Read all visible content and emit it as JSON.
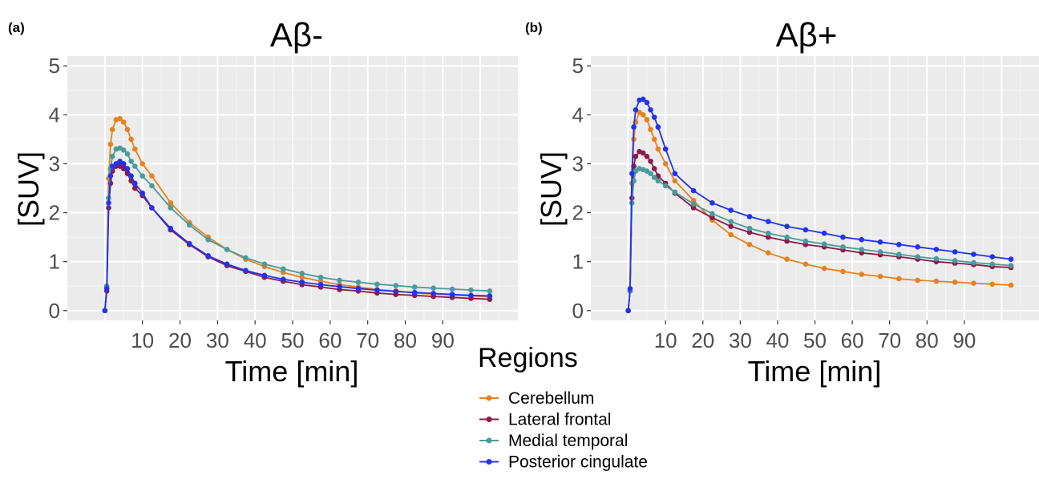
{
  "chart_data": [
    {
      "panel_label": "(a)",
      "type": "line",
      "title": "Aβ-",
      "xlabel": "Time [min]",
      "ylabel": "[SUV]",
      "xlim": [
        -10,
        110
      ],
      "ylim": [
        -0.2,
        5.2
      ],
      "xticks": [
        10,
        20,
        30,
        40,
        50,
        60,
        70,
        80,
        90
      ],
      "yticks": [
        0,
        1,
        2,
        3,
        4,
        5
      ],
      "grid": true,
      "series": [
        {
          "name": "Cerebellum",
          "color": "#e6821e",
          "x": [
            0,
            0.5,
            1,
            1.5,
            2,
            3,
            4,
            5,
            6,
            7,
            8,
            10,
            12.5,
            17.5,
            22.5,
            27.5,
            32.5,
            37.5,
            42.5,
            47.5,
            52.5,
            57.5,
            62.5,
            67.5,
            72.5,
            77.5,
            82.5,
            87.5,
            92.5,
            97.5,
            102.5
          ],
          "y": [
            0,
            0.5,
            2.7,
            3.4,
            3.7,
            3.9,
            3.92,
            3.85,
            3.7,
            3.5,
            3.3,
            3.0,
            2.75,
            2.2,
            1.8,
            1.5,
            1.25,
            1.05,
            0.9,
            0.78,
            0.68,
            0.6,
            0.53,
            0.48,
            0.43,
            0.4,
            0.36,
            0.34,
            0.32,
            0.3,
            0.28
          ]
        },
        {
          "name": "Lateral frontal",
          "color": "#8c1a4a",
          "x": [
            0,
            0.5,
            1,
            1.5,
            2,
            3,
            4,
            5,
            6,
            7,
            8,
            10,
            12.5,
            17.5,
            22.5,
            27.5,
            32.5,
            37.5,
            42.5,
            47.5,
            52.5,
            57.5,
            62.5,
            67.5,
            72.5,
            77.5,
            82.5,
            87.5,
            92.5,
            97.5,
            102.5
          ],
          "y": [
            0,
            0.4,
            2.1,
            2.6,
            2.85,
            2.95,
            2.95,
            2.9,
            2.8,
            2.65,
            2.5,
            2.35,
            2.1,
            1.65,
            1.35,
            1.1,
            0.92,
            0.8,
            0.68,
            0.6,
            0.53,
            0.48,
            0.43,
            0.4,
            0.36,
            0.33,
            0.31,
            0.29,
            0.27,
            0.25,
            0.23
          ]
        },
        {
          "name": "Medial temporal",
          "color": "#4a9b9b",
          "x": [
            0,
            0.5,
            1,
            1.5,
            2,
            3,
            4,
            5,
            6,
            7,
            8,
            10,
            12.5,
            17.5,
            22.5,
            27.5,
            32.5,
            37.5,
            42.5,
            47.5,
            52.5,
            57.5,
            62.5,
            67.5,
            72.5,
            77.5,
            82.5,
            87.5,
            92.5,
            97.5,
            102.5
          ],
          "y": [
            0,
            0.5,
            2.3,
            2.9,
            3.15,
            3.3,
            3.32,
            3.28,
            3.2,
            3.05,
            2.95,
            2.75,
            2.55,
            2.1,
            1.75,
            1.45,
            1.25,
            1.08,
            0.95,
            0.85,
            0.76,
            0.68,
            0.62,
            0.58,
            0.54,
            0.51,
            0.48,
            0.46,
            0.44,
            0.42,
            0.4
          ]
        },
        {
          "name": "Posterior cingulate",
          "color": "#2233ee",
          "x": [
            0,
            0.5,
            1,
            1.5,
            2,
            3,
            4,
            5,
            6,
            7,
            8,
            10,
            12.5,
            17.5,
            22.5,
            27.5,
            32.5,
            37.5,
            42.5,
            47.5,
            52.5,
            57.5,
            62.5,
            67.5,
            72.5,
            77.5,
            82.5,
            87.5,
            92.5,
            97.5,
            102.5
          ],
          "y": [
            0,
            0.45,
            2.2,
            2.75,
            2.95,
            3.0,
            3.05,
            3.0,
            2.9,
            2.75,
            2.6,
            2.4,
            2.1,
            1.68,
            1.37,
            1.12,
            0.95,
            0.82,
            0.72,
            0.64,
            0.58,
            0.53,
            0.49,
            0.45,
            0.42,
            0.39,
            0.37,
            0.35,
            0.33,
            0.31,
            0.3
          ]
        }
      ]
    },
    {
      "panel_label": "(b)",
      "type": "line",
      "title": "Aβ+",
      "xlabel": "Time [min]",
      "ylabel": "[SUV]",
      "xlim": [
        -10,
        110
      ],
      "ylim": [
        -0.2,
        5.2
      ],
      "xticks": [
        10,
        20,
        30,
        40,
        50,
        60,
        70,
        80,
        90
      ],
      "yticks": [
        0,
        1,
        2,
        3,
        4,
        5
      ],
      "grid": true,
      "series": [
        {
          "name": "Cerebellum",
          "color": "#e6821e",
          "x": [
            0,
            0.5,
            1,
            1.5,
            2,
            3,
            4,
            5,
            6,
            7,
            8,
            10,
            12.5,
            17.5,
            22.5,
            27.5,
            32.5,
            37.5,
            42.5,
            47.5,
            52.5,
            57.5,
            62.5,
            67.5,
            72.5,
            77.5,
            82.5,
            87.5,
            92.5,
            97.5,
            102.5
          ],
          "y": [
            0,
            0.4,
            2.6,
            3.5,
            3.85,
            4.05,
            4.0,
            3.9,
            3.7,
            3.5,
            3.3,
            3.0,
            2.65,
            2.25,
            1.85,
            1.55,
            1.35,
            1.18,
            1.05,
            0.95,
            0.86,
            0.8,
            0.74,
            0.7,
            0.65,
            0.62,
            0.6,
            0.58,
            0.56,
            0.54,
            0.52
          ]
        },
        {
          "name": "Lateral frontal",
          "color": "#8c1a4a",
          "x": [
            0,
            0.5,
            1,
            1.5,
            2,
            3,
            4,
            5,
            6,
            7,
            8,
            10,
            12.5,
            17.5,
            22.5,
            27.5,
            32.5,
            37.5,
            42.5,
            47.5,
            52.5,
            57.5,
            62.5,
            67.5,
            72.5,
            77.5,
            82.5,
            87.5,
            92.5,
            97.5,
            102.5
          ],
          "y": [
            0,
            0.4,
            2.3,
            2.95,
            3.15,
            3.25,
            3.22,
            3.15,
            3.05,
            2.9,
            2.75,
            2.6,
            2.4,
            2.1,
            1.9,
            1.72,
            1.6,
            1.5,
            1.42,
            1.35,
            1.3,
            1.24,
            1.18,
            1.14,
            1.1,
            1.05,
            1.0,
            0.97,
            0.94,
            0.9,
            0.88
          ]
        },
        {
          "name": "Medial temporal",
          "color": "#4a9b9b",
          "x": [
            0,
            0.5,
            1,
            1.5,
            2,
            3,
            4,
            5,
            6,
            7,
            8,
            10,
            12.5,
            17.5,
            22.5,
            27.5,
            32.5,
            37.5,
            42.5,
            47.5,
            52.5,
            57.5,
            62.5,
            67.5,
            72.5,
            77.5,
            82.5,
            87.5,
            92.5,
            97.5,
            102.5
          ],
          "y": [
            0,
            0.4,
            2.2,
            2.65,
            2.85,
            2.9,
            2.88,
            2.85,
            2.8,
            2.72,
            2.65,
            2.55,
            2.42,
            2.18,
            1.98,
            1.82,
            1.68,
            1.58,
            1.5,
            1.42,
            1.36,
            1.3,
            1.25,
            1.2,
            1.15,
            1.1,
            1.06,
            1.02,
            0.98,
            0.95,
            0.92
          ]
        },
        {
          "name": "Posterior cingulate",
          "color": "#2233ee",
          "x": [
            0,
            0.5,
            1,
            1.5,
            2,
            3,
            4,
            5,
            6,
            7,
            8,
            10,
            12.5,
            17.5,
            22.5,
            27.5,
            32.5,
            37.5,
            42.5,
            47.5,
            52.5,
            57.5,
            62.5,
            67.5,
            72.5,
            77.5,
            82.5,
            87.5,
            92.5,
            97.5,
            102.5
          ],
          "y": [
            0,
            0.45,
            2.8,
            3.75,
            4.1,
            4.3,
            4.32,
            4.25,
            4.1,
            3.95,
            3.75,
            3.3,
            2.8,
            2.45,
            2.2,
            2.05,
            1.92,
            1.82,
            1.72,
            1.65,
            1.58,
            1.5,
            1.45,
            1.4,
            1.35,
            1.3,
            1.25,
            1.2,
            1.15,
            1.1,
            1.05
          ]
        }
      ]
    }
  ],
  "legend": {
    "title": "Regions",
    "items": [
      {
        "label": "Cerebellum",
        "color": "#e6821e"
      },
      {
        "label": "Lateral frontal",
        "color": "#8c1a4a"
      },
      {
        "label": "Medial temporal",
        "color": "#4a9b9b"
      },
      {
        "label": "Posterior cingulate",
        "color": "#2233ee"
      }
    ]
  }
}
